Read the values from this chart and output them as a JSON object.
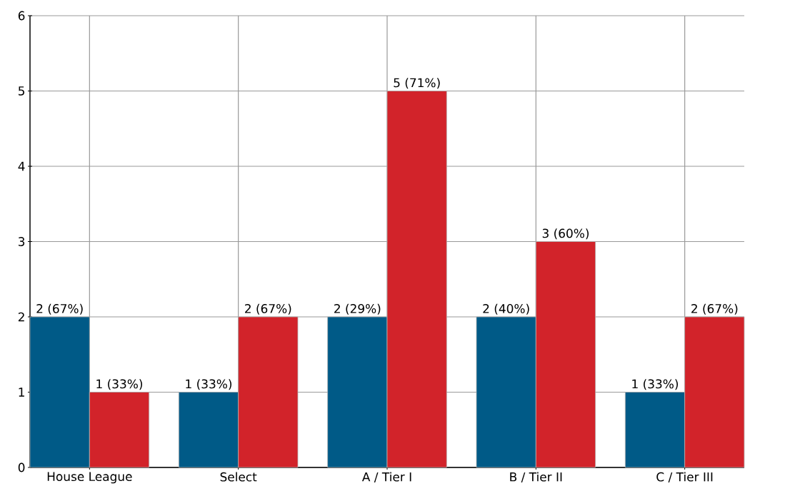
{
  "chart_data": {
    "type": "bar",
    "categories": [
      "House League",
      "Select",
      "A / Tier I",
      "B / Tier II",
      "C / Tier III"
    ],
    "series": [
      {
        "color": "#005a87",
        "values": [
          2,
          1,
          2,
          2,
          1
        ],
        "value_labels": [
          "2 (67%)",
          "1 (33%)",
          "2 (29%)",
          "2 (40%)",
          "1 (33%)"
        ]
      },
      {
        "color": "#d2232a",
        "values": [
          1,
          2,
          5,
          3,
          2
        ],
        "value_labels": [
          "1 (33%)",
          "2 (67%)",
          "5 (71%)",
          "3 (60%)",
          "2 (67%)"
        ]
      }
    ],
    "ylim": [
      0,
      6
    ],
    "yticks": [
      0,
      1,
      2,
      3,
      4,
      5,
      6
    ],
    "grid": true
  }
}
